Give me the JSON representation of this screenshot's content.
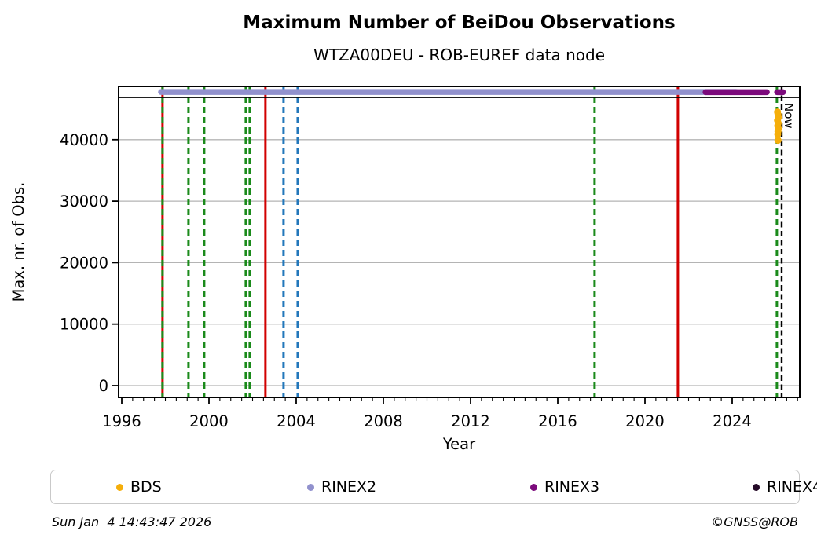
{
  "header": {
    "title": "Maximum Number of BeiDou Observations",
    "subtitle": "WTZA00DEU - ROB-EUREF data node"
  },
  "chart_data": {
    "type": "scatter",
    "title": "Maximum Number of BeiDou Observations",
    "subtitle": "WTZA00DEU - ROB-EUREF data node",
    "xlabel": "Year",
    "ylabel": "Max. nr. of Obs.",
    "x_range": [
      1995.85,
      2027.1
    ],
    "y_range": [
      -1900,
      48700
    ],
    "x_major_ticks": [
      1996,
      2000,
      2004,
      2008,
      2012,
      2016,
      2020,
      2024
    ],
    "x_minor_step": 0.5,
    "y_ticks": [
      0,
      10000,
      20000,
      30000,
      40000
    ],
    "grid": "horizontal-gray",
    "legend_position": "bottom",
    "hline_y": 46870,
    "series": [
      {
        "name": "BDS",
        "color": "#f5ae0a",
        "type": "points",
        "points": [
          [
            2026.08,
            44500
          ],
          [
            2026.1,
            44050
          ],
          [
            2026.12,
            43600
          ],
          [
            2026.08,
            43150
          ],
          [
            2026.11,
            42700
          ],
          [
            2026.09,
            42250
          ],
          [
            2026.12,
            41800
          ],
          [
            2026.1,
            41350
          ],
          [
            2026.09,
            40900
          ],
          [
            2026.1,
            39900
          ]
        ]
      },
      {
        "name": "RINEX2",
        "color": "#9191cd",
        "type": "band",
        "value": 47750,
        "segments": [
          [
            1997.8,
            2024.18
          ]
        ],
        "points": []
      },
      {
        "name": "RINEX3",
        "color": "#7c0a7c",
        "type": "band",
        "value": 47720,
        "segments": [
          [
            2022.78,
            2025.59
          ],
          [
            2026.06,
            2026.33
          ]
        ],
        "points": []
      },
      {
        "name": "RINEX4",
        "color": "#260b28",
        "type": "points",
        "points": []
      }
    ],
    "event_lines": [
      {
        "x": 1997.87,
        "color": "#d10000",
        "style": "solid"
      },
      {
        "x": 1997.87,
        "color": "#1a8a1a",
        "style": "dashed"
      },
      {
        "x": 1999.06,
        "color": "#1a8a1a",
        "style": "dashed"
      },
      {
        "x": 1999.78,
        "color": "#1a8a1a",
        "style": "dashed"
      },
      {
        "x": 2001.69,
        "color": "#1a8a1a",
        "style": "dashed"
      },
      {
        "x": 2001.87,
        "color": "#1a8a1a",
        "style": "dashed"
      },
      {
        "x": 2002.59,
        "color": "#d10000",
        "style": "solid"
      },
      {
        "x": 2003.42,
        "color": "#2277bb",
        "style": "dashed"
      },
      {
        "x": 2004.07,
        "color": "#2277bb",
        "style": "dashed"
      },
      {
        "x": 2017.69,
        "color": "#1a8a1a",
        "style": "dashed"
      },
      {
        "x": 2021.51,
        "color": "#d10000",
        "style": "solid"
      },
      {
        "x": 2026.05,
        "color": "#1a8a1a",
        "style": "dashed"
      }
    ],
    "now_line": {
      "x": 2026.27,
      "label": "Now",
      "color": "#000000",
      "style": "dashed"
    }
  },
  "legend": {
    "items": [
      {
        "label": "BDS",
        "color": "#f5ae0a"
      },
      {
        "label": "RINEX2",
        "color": "#9191cd"
      },
      {
        "label": "RINEX3",
        "color": "#7c0a7c"
      },
      {
        "label": "RINEX4",
        "color": "#260b28"
      }
    ]
  },
  "footer": {
    "timestamp": "Sun Jan  4 14:43:47 2026",
    "credit": "©GNSS@ROB"
  }
}
